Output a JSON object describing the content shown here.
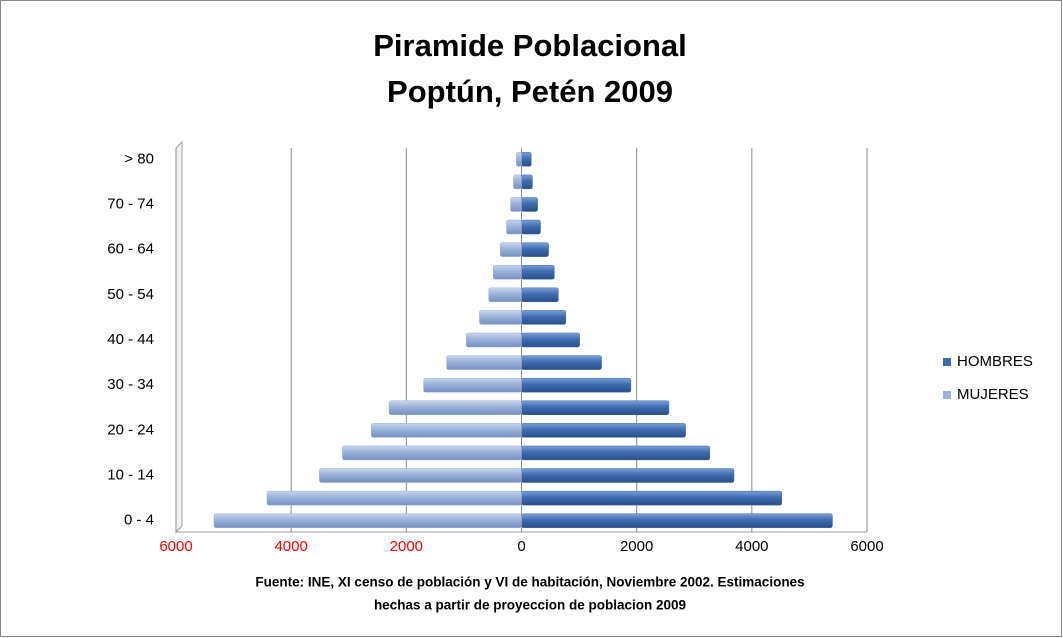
{
  "chart_data": {
    "type": "pyramid",
    "title": [
      "Piramide Poblacional",
      "Poptún, Petén 2009"
    ],
    "source": [
      "Fuente: INE, XI censo de población  y VI de habitación,  Noviembre 2002. Estimaciones",
      "hechas a partir de proyeccion de poblacion 2009"
    ],
    "categories": [
      "0 - 4",
      null,
      "10 - 14",
      null,
      "20 - 24",
      null,
      "30 - 34",
      null,
      "40 - 44",
      null,
      "50 - 54",
      null,
      "60 - 64",
      null,
      "70 - 74",
      null,
      "> 80"
    ],
    "series": [
      {
        "name": "HOMBRES",
        "color": "#3f6cb0",
        "values": [
          5400,
          4520,
          3690,
          3270,
          2850,
          2560,
          1900,
          1390,
          1010,
          770,
          640,
          570,
          470,
          330,
          280,
          190,
          170
        ]
      },
      {
        "name": "MUJERES",
        "color": "#9ab1da",
        "values": [
          -5340,
          -4420,
          -3510,
          -3110,
          -2610,
          -2300,
          -1700,
          -1300,
          -960,
          -730,
          -570,
          -490,
          -370,
          -260,
          -190,
          -140,
          -90
        ]
      }
    ],
    "xlim": [
      -6000,
      6000
    ],
    "xticks": [
      {
        "value": -6000,
        "label": "6000"
      },
      {
        "value": -4000,
        "label": "4000"
      },
      {
        "value": -2000,
        "label": "2000"
      },
      0,
      2000,
      4000,
      6000
    ],
    "negative_tick_color": "#ff0000",
    "grid": true,
    "legend": "right"
  }
}
